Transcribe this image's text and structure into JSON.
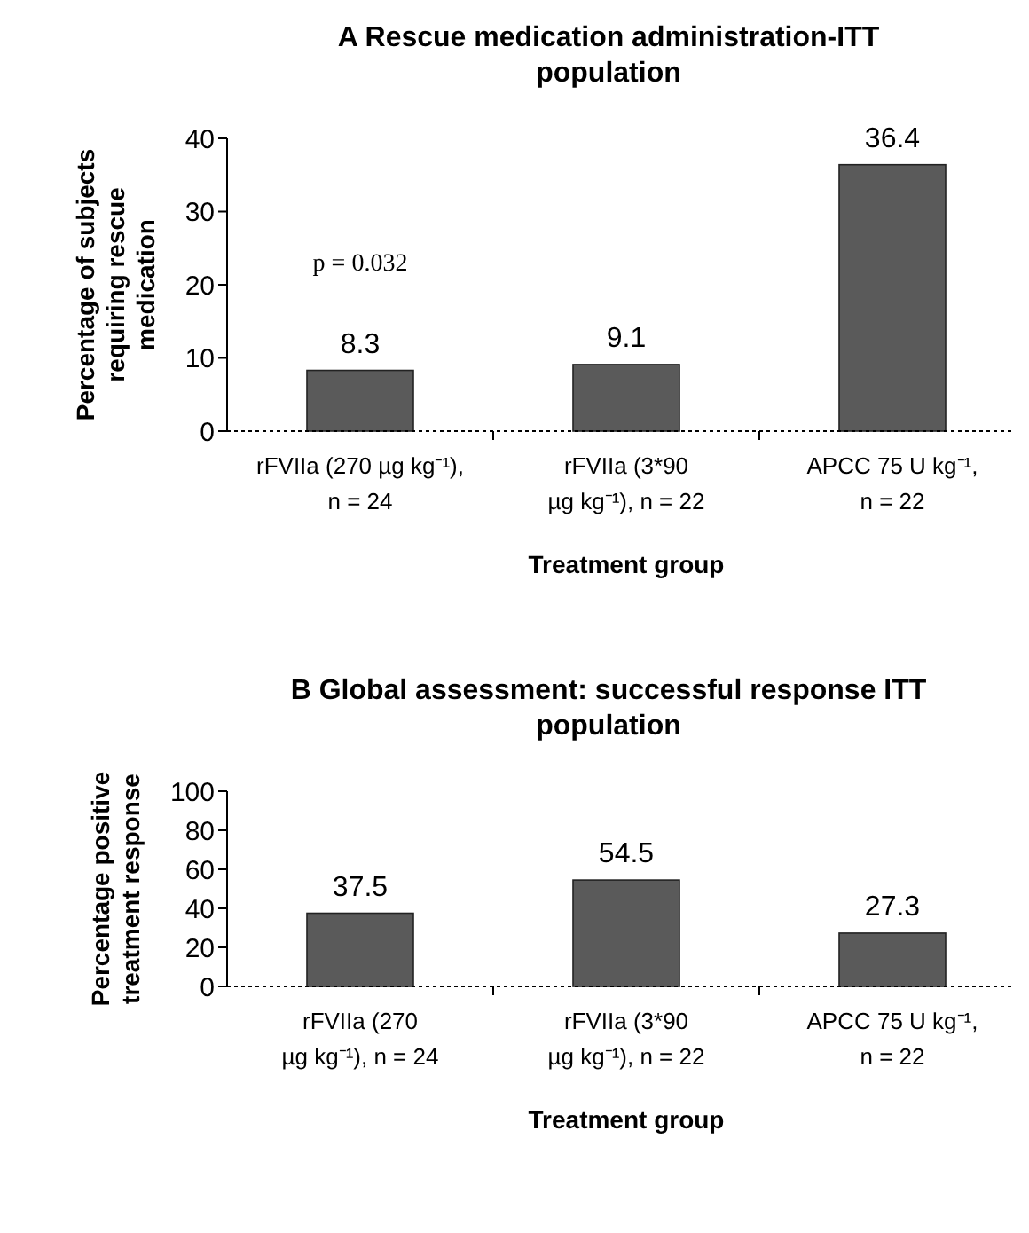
{
  "chart_data": [
    {
      "type": "bar",
      "title": "A   Rescue medication administration-ITT population",
      "ylabel": "Percentage of subjects requiring rescue medication",
      "xlabel": "Treatment group",
      "categories": [
        "rFVIIa (270 µg kg⁻¹), n = 24",
        "rFVIIa (3*90 µg kg⁻¹), n = 22",
        "APCC 75 U kg⁻¹, n = 22"
      ],
      "values": [
        8.3,
        9.1,
        36.4
      ],
      "color": "#5a5a5a",
      "ylim": [
        0,
        40
      ],
      "yticks": [
        0,
        10,
        20,
        30,
        40
      ],
      "data_labels": true,
      "annotations": [
        "p = 0.032"
      ]
    },
    {
      "type": "bar",
      "title": "B   Global assessment: successful response ITT population",
      "ylabel": "Percentage positive treatment response",
      "xlabel": "Treatment group",
      "categories": [
        "rFVIIa (270 µg kg⁻¹), n = 24",
        "rFVIIa (3*90 µg kg⁻¹), n = 22",
        "APCC 75 U kg⁻¹, n = 22"
      ],
      "values": [
        37.5,
        54.5,
        27.3
      ],
      "color": "#5a5a5a",
      "ylim": [
        0,
        100
      ],
      "yticks": [
        0,
        20,
        40,
        60,
        80,
        100
      ],
      "data_labels": true
    }
  ]
}
